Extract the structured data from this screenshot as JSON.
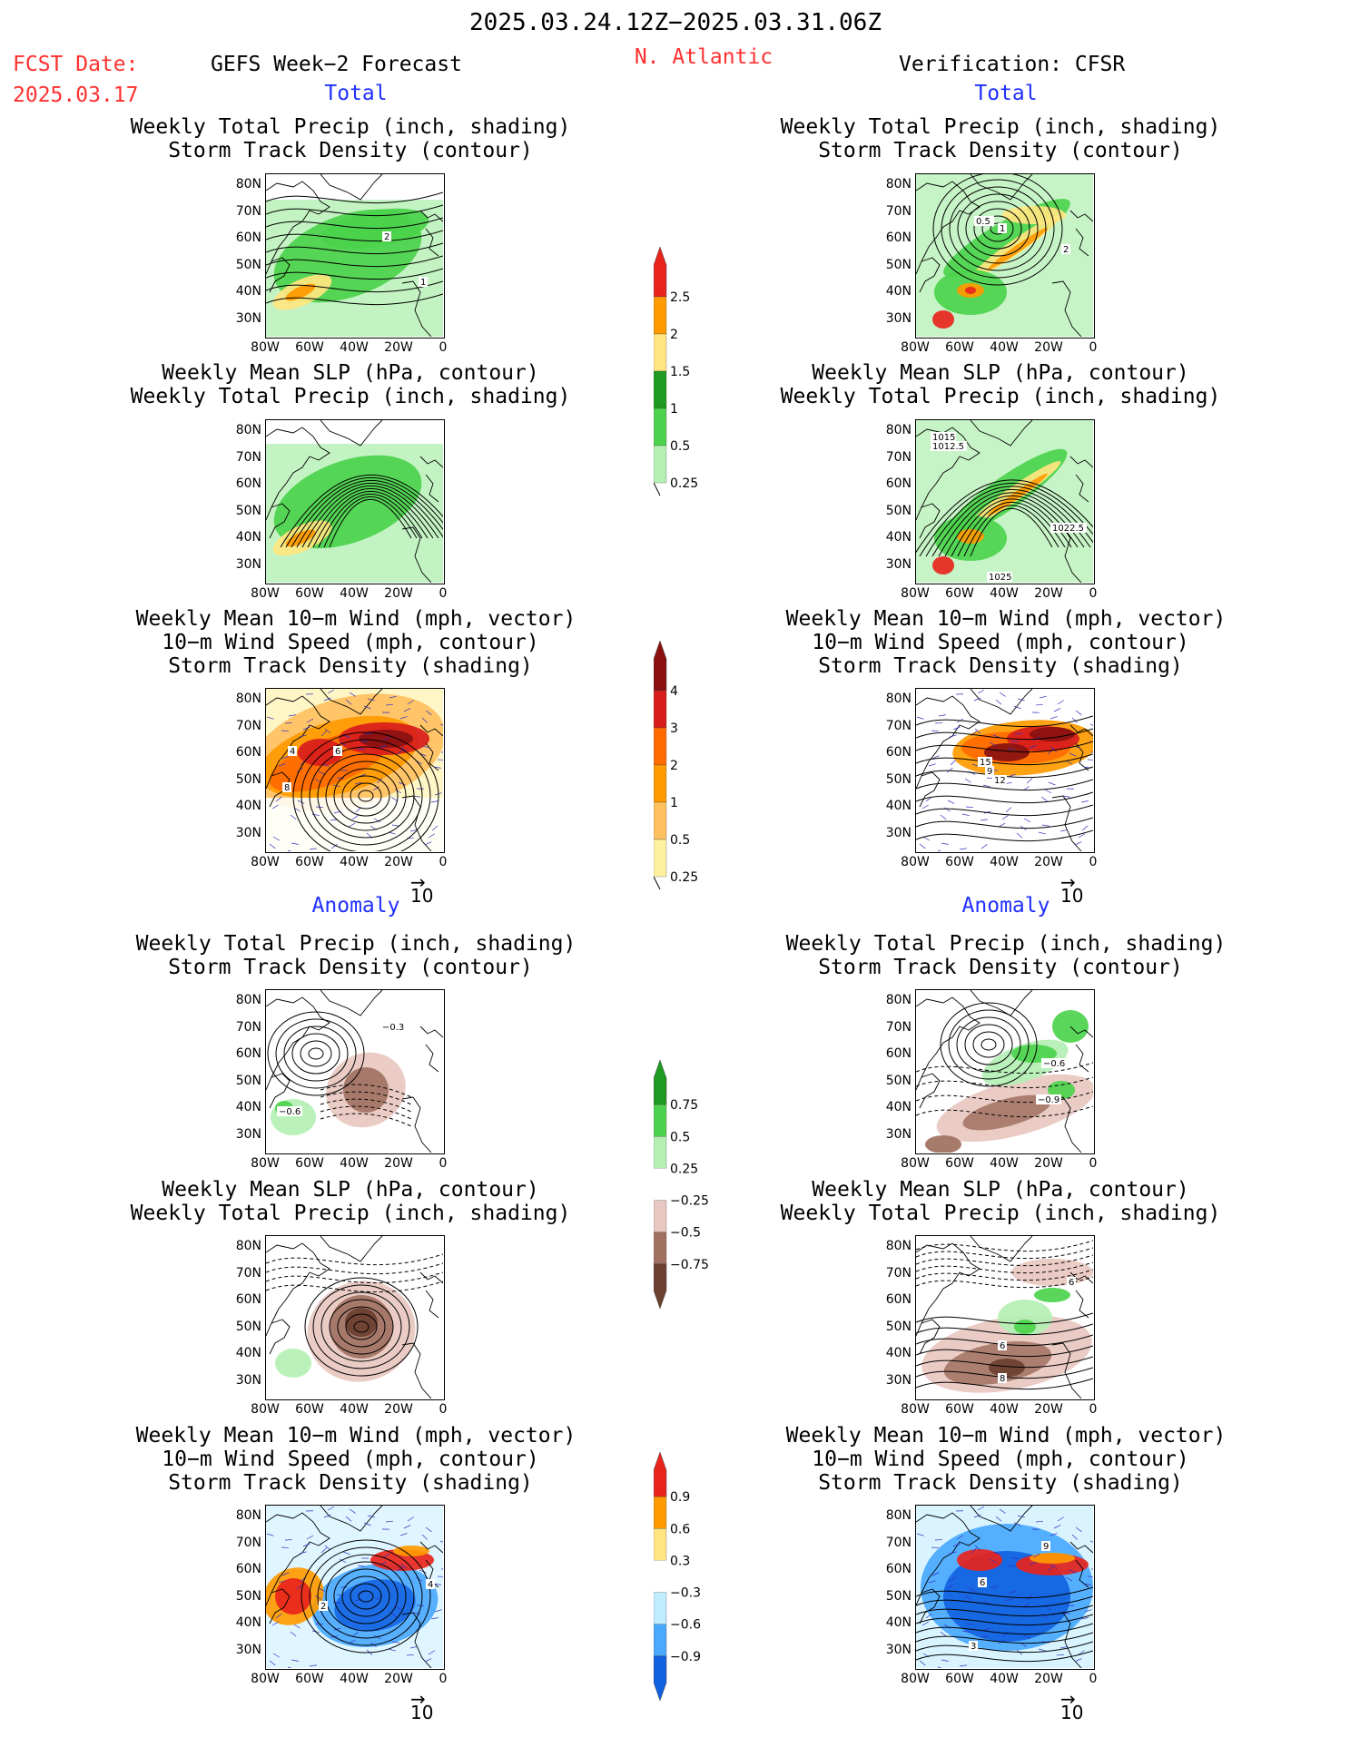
{
  "header": {
    "date_range": "2025.03.24.12Z−2025.03.31.06Z",
    "fcst_label": "FCST Date:",
    "fcst_date": "2025.03.17",
    "forecast_title": "GEFS Week−2 Forecast",
    "region": "N. Atlantic",
    "verification": "Verification: CFSR"
  },
  "sections": {
    "total": "Total",
    "anomaly": "Anomaly"
  },
  "panel_titles": {
    "precip_storm": [
      "Weekly Total Precip (inch, shading)",
      "Storm Track Density (contour)"
    ],
    "slp_precip": [
      "Weekly Mean SLP (hPa, contour)",
      "Weekly Total Precip (inch, shading)"
    ],
    "wind_storm": [
      "Weekly Mean 10−m Wind (mph, vector)",
      "10−m Wind Speed (mph, contour)",
      "Storm Track Density (shading)"
    ]
  },
  "axes": {
    "lat_labels": [
      "80N",
      "70N",
      "60N",
      "50N",
      "40N",
      "30N"
    ],
    "lon_labels": [
      "80W",
      "60W",
      "40W",
      "20W",
      "0"
    ]
  },
  "vector_ref": "10",
  "colorbars": {
    "precip_total": {
      "labels": [
        "2.5",
        "2",
        "1.5",
        "1",
        "0.5",
        "0.25"
      ],
      "colors": [
        "#e8241c",
        "#ff9a00",
        "#ffe680",
        "#1f9a20",
        "#4cd24c",
        "#b4f0b4"
      ]
    },
    "storm_total": {
      "labels": [
        "4",
        "3",
        "2",
        "1",
        "0.5",
        "0.25"
      ],
      "colors": [
        "#8a1010",
        "#d81c1c",
        "#ff6a00",
        "#ff9a00",
        "#ffc060",
        "#fff0a0"
      ]
    },
    "precip_anom": {
      "labels": [
        "0.75",
        "0.5",
        "0.25",
        "−0.25",
        "−0.5",
        "−0.75"
      ],
      "colors": [
        "#1f9a20",
        "#4cd24c",
        "#b4f0b4",
        "#ffffff",
        "#e8c8c0",
        "#a07060",
        "#6a4030"
      ]
    },
    "storm_anom": {
      "labels": [
        "0.9",
        "0.6",
        "0.3",
        "−0.3",
        "−0.6",
        "−0.9"
      ],
      "colors": [
        "#e8241c",
        "#ff9a00",
        "#ffe680",
        "#ffffff",
        "#c0ecff",
        "#4aa8ff",
        "#1060e0"
      ]
    }
  },
  "contour_labels": {
    "f1": [
      "2",
      "1"
    ],
    "v1": [
      "0.5",
      "1",
      "2"
    ],
    "v2": [
      "1015",
      "1012.5",
      "1022.5",
      "1025"
    ],
    "f3": [
      "4",
      "6",
      "8"
    ],
    "v3": [
      "15",
      "9",
      "12"
    ],
    "f4": [
      "−0.3",
      "−0.6"
    ],
    "v4": [
      "−0.6",
      "−0.9"
    ],
    "v5": [
      "6",
      "6",
      "8"
    ],
    "f6": [
      "2",
      "4"
    ],
    "v6": [
      "9",
      "6",
      "3"
    ]
  }
}
